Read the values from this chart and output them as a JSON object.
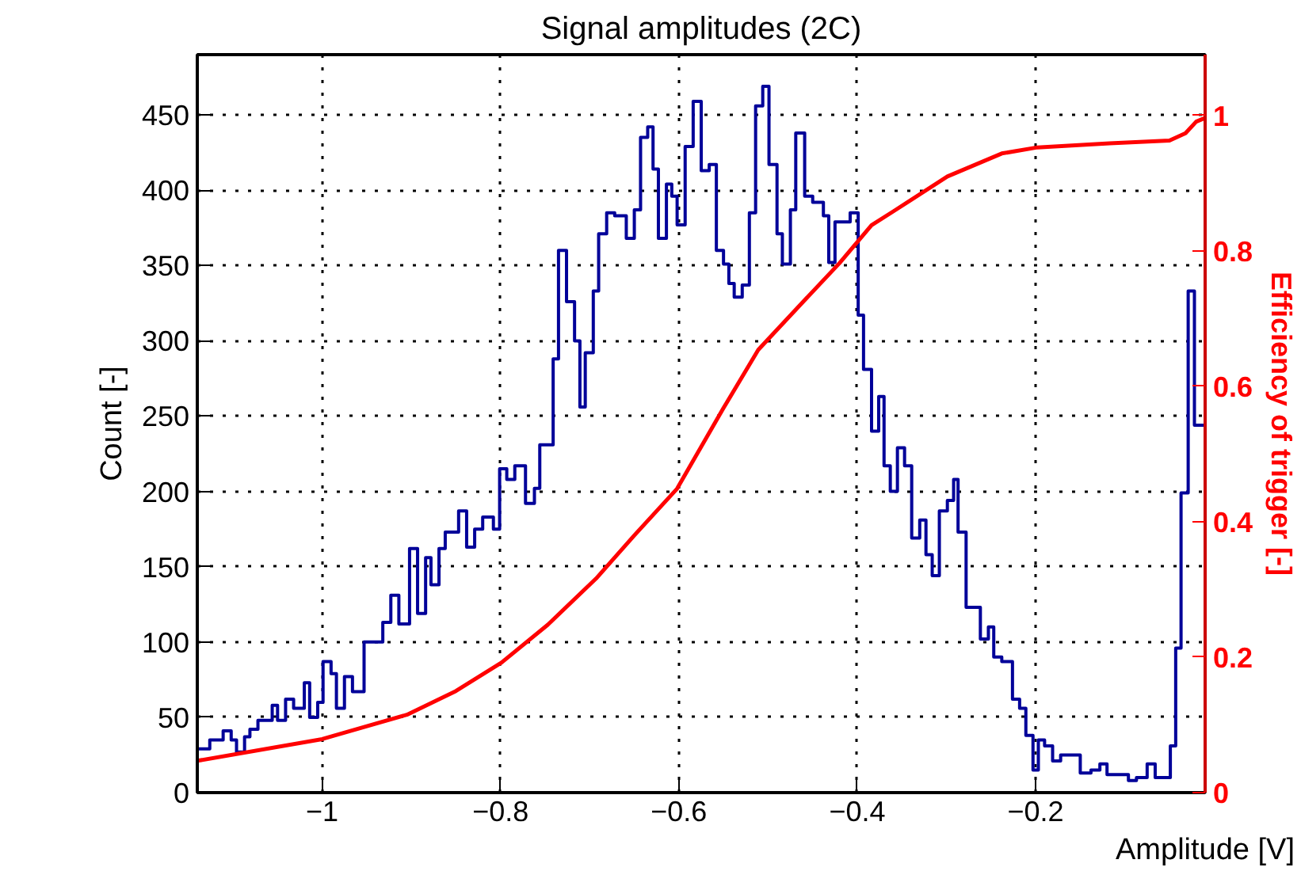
{
  "chart_data": {
    "type": "histogram",
    "title": "Signal amplitudes (2C)",
    "xlabel": "Amplitude [V]",
    "ylabel": "Count [-]",
    "y2label": "Efficiency of trigger [-]",
    "bins": [
      -1.14,
      -1.126,
      -1.111,
      -1.102,
      -1.096,
      -1.087,
      -1.081,
      -1.072,
      -1.056,
      -1.05,
      -1.041,
      -1.032,
      -1.02,
      -1.014,
      -1.005,
      -0.999,
      -0.99,
      -0.984,
      -0.975,
      -0.966,
      -0.953,
      -0.932,
      -0.923,
      -0.914,
      -0.902,
      -0.893,
      -0.884,
      -0.878,
      -0.869,
      -0.862,
      -0.847,
      -0.838,
      -0.829,
      -0.82,
      -0.808,
      -0.801,
      -0.793,
      -0.784,
      -0.772,
      -0.762,
      -0.756,
      -0.741,
      -0.735,
      -0.726,
      -0.717,
      -0.711,
      -0.705,
      -0.696,
      -0.69,
      -0.681,
      -0.672,
      -0.659,
      -0.65,
      -0.643,
      -0.635,
      -0.629,
      -0.623,
      -0.614,
      -0.608,
      -0.602,
      -0.593,
      -0.584,
      -0.575,
      -0.566,
      -0.558,
      -0.55,
      -0.544,
      -0.538,
      -0.529,
      -0.521,
      -0.514,
      -0.506,
      -0.499,
      -0.49,
      -0.484,
      -0.475,
      -0.469,
      -0.459,
      -0.45,
      -0.438,
      -0.432,
      -0.425,
      -0.408,
      -0.399,
      -0.393,
      -0.384,
      -0.376,
      -0.37,
      -0.363,
      -0.355,
      -0.347,
      -0.339,
      -0.33,
      -0.323,
      -0.316,
      -0.308,
      -0.299,
      -0.292,
      -0.287,
      -0.278,
      -0.262,
      -0.253,
      -0.247,
      -0.238,
      -0.226,
      -0.218,
      -0.211,
      -0.203,
      -0.197,
      -0.19,
      -0.181,
      -0.172,
      -0.15,
      -0.138,
      -0.128,
      -0.12,
      -0.096,
      -0.087,
      -0.075,
      -0.066,
      -0.049,
      -0.043,
      -0.037,
      -0.029,
      -0.022,
      -0.011
    ],
    "values": [
      29,
      35,
      41,
      35,
      27,
      37,
      42,
      48,
      58,
      48,
      62,
      56,
      73,
      50,
      60,
      87,
      79,
      56,
      77,
      67,
      100,
      113,
      131,
      112,
      162,
      119,
      156,
      138,
      162,
      173,
      187,
      163,
      175,
      183,
      175,
      215,
      208,
      217,
      192,
      202,
      231,
      288,
      360,
      326,
      300,
      256,
      292,
      333,
      371,
      385,
      383,
      368,
      387,
      435,
      442,
      414,
      368,
      404,
      396,
      377,
      429,
      459,
      413,
      417,
      360,
      351,
      338,
      329,
      337,
      385,
      456,
      469,
      417,
      371,
      351,
      387,
      438,
      396,
      392,
      383,
      352,
      379,
      385,
      317,
      281,
      240,
      263,
      217,
      200,
      229,
      217,
      169,
      181,
      158,
      144,
      187,
      194,
      208,
      173,
      123,
      102,
      110,
      90,
      87,
      62,
      56,
      38,
      15,
      35,
      31,
      21,
      25,
      13,
      15,
      19,
      12,
      8,
      10,
      19,
      10,
      31,
      96,
      199,
      333,
      244
    ],
    "color": "#000099",
    "series": [
      {
        "type": "line",
        "axis": "y2",
        "color": "#ff0000",
        "x": [
          -1.14,
          -1.0,
          -0.905,
          -0.85,
          -0.799,
          -0.747,
          -0.693,
          -0.65,
          -0.602,
          -0.55,
          -0.511,
          -0.46,
          -0.42,
          -0.384,
          -0.359,
          -0.299,
          -0.238,
          -0.198,
          -0.117,
          -0.05,
          -0.032,
          -0.02,
          -0.011
        ],
        "values": [
          0.047,
          0.079,
          0.115,
          0.15,
          0.192,
          0.248,
          0.316,
          0.38,
          0.449,
          0.568,
          0.654,
          0.726,
          0.782,
          0.838,
          0.859,
          0.91,
          0.944,
          0.953,
          0.959,
          0.963,
          0.974,
          0.991,
          0.996
        ]
      }
    ],
    "xlim": [
      -1.14,
      -0.01
    ],
    "ylim": [
      0,
      490
    ],
    "y2lim": [
      0,
      1.09
    ],
    "xticks": [
      {
        "value": -1,
        "label": "−1"
      },
      {
        "value": -0.8,
        "label": "−0.8"
      },
      {
        "value": -0.6,
        "label": "−0.6"
      },
      {
        "value": -0.4,
        "label": "−0.4"
      },
      {
        "value": -0.2,
        "label": "−0.2"
      }
    ],
    "yticks": [
      0,
      50,
      100,
      150,
      200,
      250,
      300,
      350,
      400,
      450
    ],
    "y2ticks": [
      0,
      0.2,
      0.4,
      0.6,
      0.8,
      1
    ],
    "grid": true,
    "marker": "none",
    "line_style": "solid"
  }
}
